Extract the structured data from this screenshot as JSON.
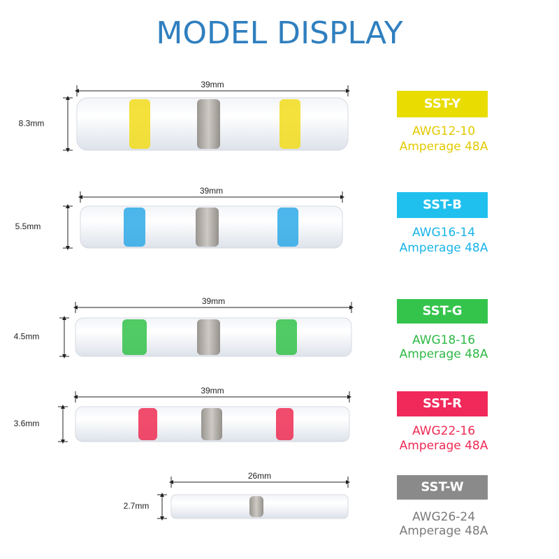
{
  "header": {
    "title": "MODEL DISPLAY"
  },
  "models": [
    {
      "length": "39mm",
      "diameter": "8.3mm",
      "code": "SST-Y",
      "awg": "AWG12-10",
      "amperage": "Amperage 48A"
    },
    {
      "length": "39mm",
      "diameter": "5.5mm",
      "code": "SST-B",
      "awg": "AWG16-14",
      "amperage": "Amperage 48A"
    },
    {
      "length": "39mm",
      "diameter": "4.5mm",
      "code": "SST-G",
      "awg": "AWG18-16",
      "amperage": "Amperage 48A"
    },
    {
      "length": "39mm",
      "diameter": "3.6mm",
      "code": "SST-R",
      "awg": "AWG22-16",
      "amperage": "Amperage 48A"
    },
    {
      "length": "26mm",
      "diameter": "2.7mm",
      "code": "SST-W",
      "awg": "AWG26-24",
      "amperage": "Amperage 48A"
    }
  ]
}
